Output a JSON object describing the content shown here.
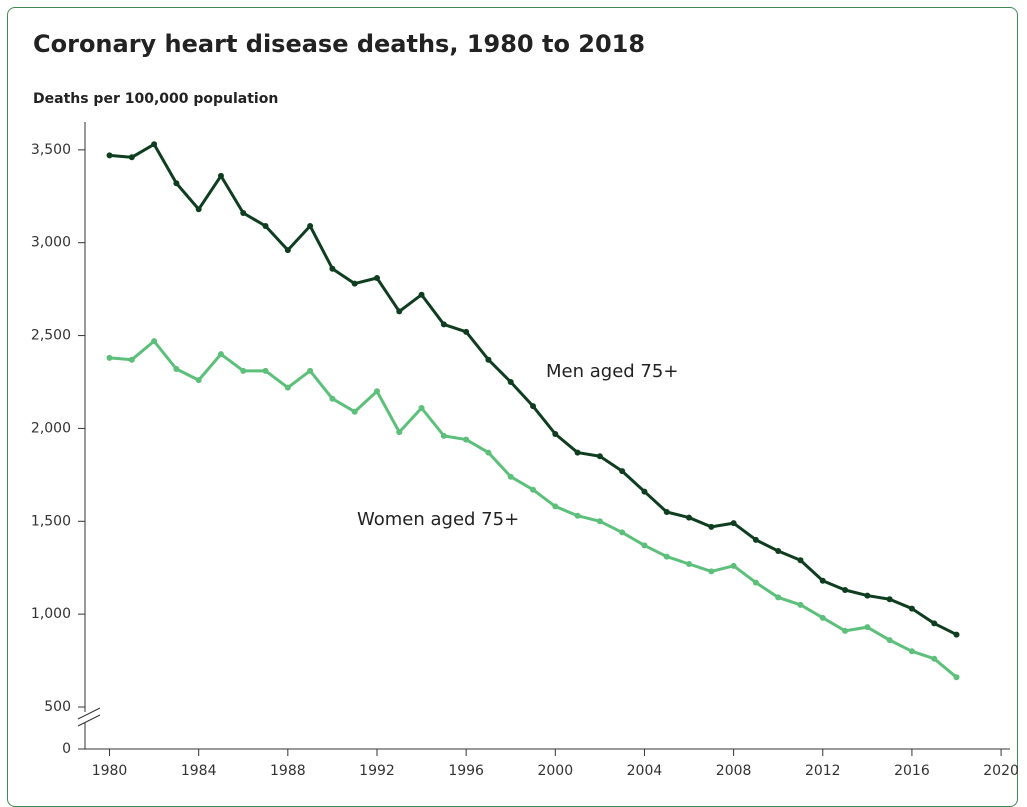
{
  "chart_data": {
    "type": "line",
    "title": "Coronary heart disease deaths, 1980 to 2018",
    "y_axis_label": "Deaths per 100,000 population",
    "x": [
      1980,
      1981,
      1982,
      1983,
      1984,
      1985,
      1986,
      1987,
      1988,
      1989,
      1990,
      1991,
      1992,
      1993,
      1994,
      1995,
      1996,
      1997,
      1998,
      1999,
      2000,
      2001,
      2002,
      2003,
      2004,
      2005,
      2006,
      2007,
      2008,
      2009,
      2010,
      2011,
      2012,
      2013,
      2014,
      2015,
      2016,
      2017,
      2018
    ],
    "series": [
      {
        "name": "Men aged 75+",
        "color": "#0f3d1f",
        "values": [
          3470,
          3460,
          3530,
          3320,
          3180,
          3360,
          3160,
          3090,
          2960,
          3090,
          2860,
          2780,
          2810,
          2630,
          2720,
          2560,
          2520,
          2370,
          2250,
          2120,
          1970,
          1870,
          1850,
          1770,
          1660,
          1550,
          1520,
          1470,
          1490,
          1400,
          1340,
          1290,
          1180,
          1130,
          1100,
          1080,
          1030,
          950,
          890
        ]
      },
      {
        "name": "Women aged 75+",
        "color": "#5cbf7a",
        "values": [
          2380,
          2370,
          2470,
          2320,
          2260,
          2400,
          2310,
          2310,
          2220,
          2310,
          2160,
          2090,
          2200,
          1980,
          2110,
          1960,
          1940,
          1870,
          1740,
          1670,
          1580,
          1530,
          1500,
          1440,
          1370,
          1310,
          1270,
          1230,
          1260,
          1170,
          1090,
          1050,
          980,
          910,
          930,
          860,
          800,
          760,
          660
        ]
      }
    ],
    "xlim": [
      1978.9,
      2020.4
    ],
    "xticks": [
      1980,
      1984,
      1988,
      1992,
      1996,
      2000,
      2004,
      2008,
      2012,
      2016,
      2020
    ],
    "ylim": [
      0,
      3650
    ],
    "yticks": [
      0,
      500,
      {
        "value": 1000,
        "label": "1,000"
      },
      {
        "value": 1500,
        "label": "1,500"
      },
      {
        "value": 2000,
        "label": "2,000"
      },
      {
        "value": 2500,
        "label": "2,500"
      },
      {
        "value": 3000,
        "label": "3,000"
      },
      {
        "value": 3500,
        "label": "3,500"
      }
    ],
    "y_break": 500,
    "grid": false
  }
}
